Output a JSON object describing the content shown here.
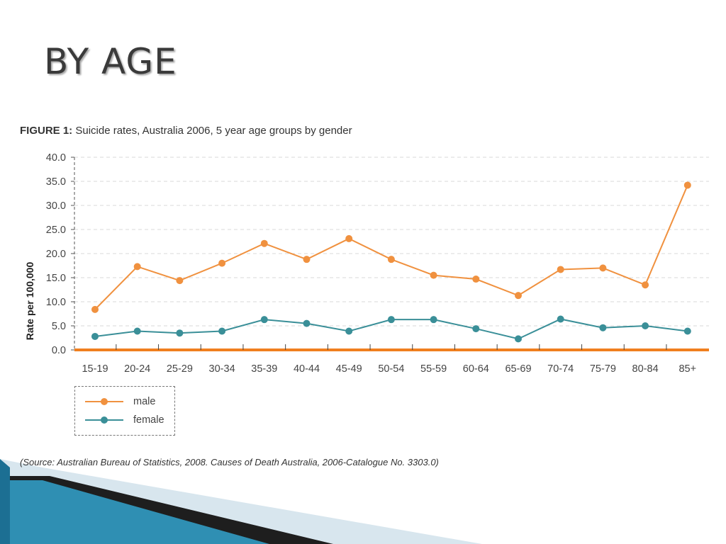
{
  "slide": {
    "title": "BY AGE"
  },
  "figure": {
    "label": "FIGURE 1:",
    "caption": "Suicide rates, Australia 2006, 5 year age groups by gender",
    "source": "(Source: Australian Bureau of Statistics, 2008. Causes of Death Australia, 2006-Catalogue No. 3303.0)"
  },
  "colors": {
    "male": "#f0913f",
    "female": "#3a8f98",
    "axis": "#f07f1f",
    "grid": "#d9d9d9"
  },
  "chart_data": {
    "type": "line",
    "ylabel": "Rate per 100,000",
    "ylim": [
      0,
      40
    ],
    "yticks": [
      "0.0",
      "5.0",
      "10.0",
      "15.0",
      "20.0",
      "25.0",
      "30.0",
      "35.0",
      "40.0"
    ],
    "categories": [
      "15-19",
      "20-24",
      "25-29",
      "30-34",
      "35-39",
      "40-44",
      "45-49",
      "50-54",
      "55-59",
      "60-64",
      "65-69",
      "70-74",
      "75-79",
      "80-84",
      "85+"
    ],
    "series": [
      {
        "name": "male",
        "values": [
          8.4,
          17.3,
          14.4,
          18.0,
          22.1,
          18.8,
          23.1,
          18.8,
          15.5,
          14.7,
          11.3,
          16.7,
          17.0,
          13.5,
          34.2
        ]
      },
      {
        "name": "female",
        "values": [
          2.8,
          3.9,
          3.5,
          3.9,
          6.3,
          5.5,
          3.9,
          6.3,
          6.3,
          4.4,
          2.3,
          6.4,
          4.6,
          5.0,
          3.9
        ]
      }
    ],
    "grid": true,
    "legend": "bottom-left"
  }
}
